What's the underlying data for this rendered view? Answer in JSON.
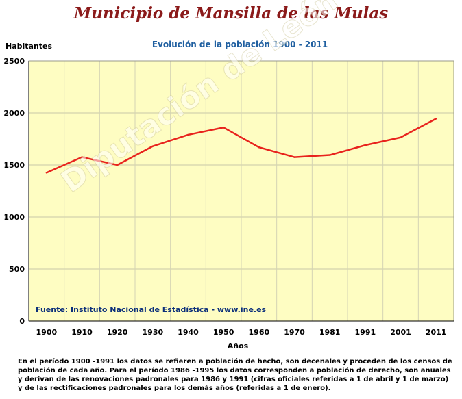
{
  "header": {
    "title": "Municipio de Mansilla de las Mulas"
  },
  "watermark": "Diputación de León",
  "source": "Fuente: Instituto Nacional de Estadística - www.ine.es",
  "note": "En el período 1900 -1991 los datos se refieren a población de hecho, son decenales y proceden de los censos de población de cada año. Para el período 1986 -1995 los datos corresponden a población de derecho, son anuales y derivan de las renovaciones padronales para 1986 y 1991 (cifras oficiales referidas a 1 de abril y 1 de marzo) y de las rectificaciones padronales para los demás años (referidas a 1 de enero).",
  "colors": {
    "plot_background": "#fefdc2",
    "line": "#e8231d",
    "title": "#8b1a1a",
    "subtitle": "#1f5fa0",
    "source": "#0b2f7a"
  },
  "chart_data": {
    "type": "line",
    "title": "Evolución de la población 1900 - 2011",
    "xlabel": "Años",
    "ylabel": "Habitantes",
    "categories": [
      "1900",
      "1910",
      "1920",
      "1930",
      "1940",
      "1950",
      "1960",
      "1970",
      "1981",
      "1991",
      "2001",
      "2011"
    ],
    "series": [
      {
        "values": [
          1425,
          1575,
          1500,
          1680,
          1790,
          1860,
          1670,
          1575,
          1595,
          1690,
          1765,
          1945
        ]
      }
    ],
    "ylim": [
      0,
      2500
    ],
    "yticks": [
      "0",
      "500",
      "1000",
      "1500",
      "2000",
      "2500"
    ],
    "grid": true,
    "legend": "none"
  }
}
